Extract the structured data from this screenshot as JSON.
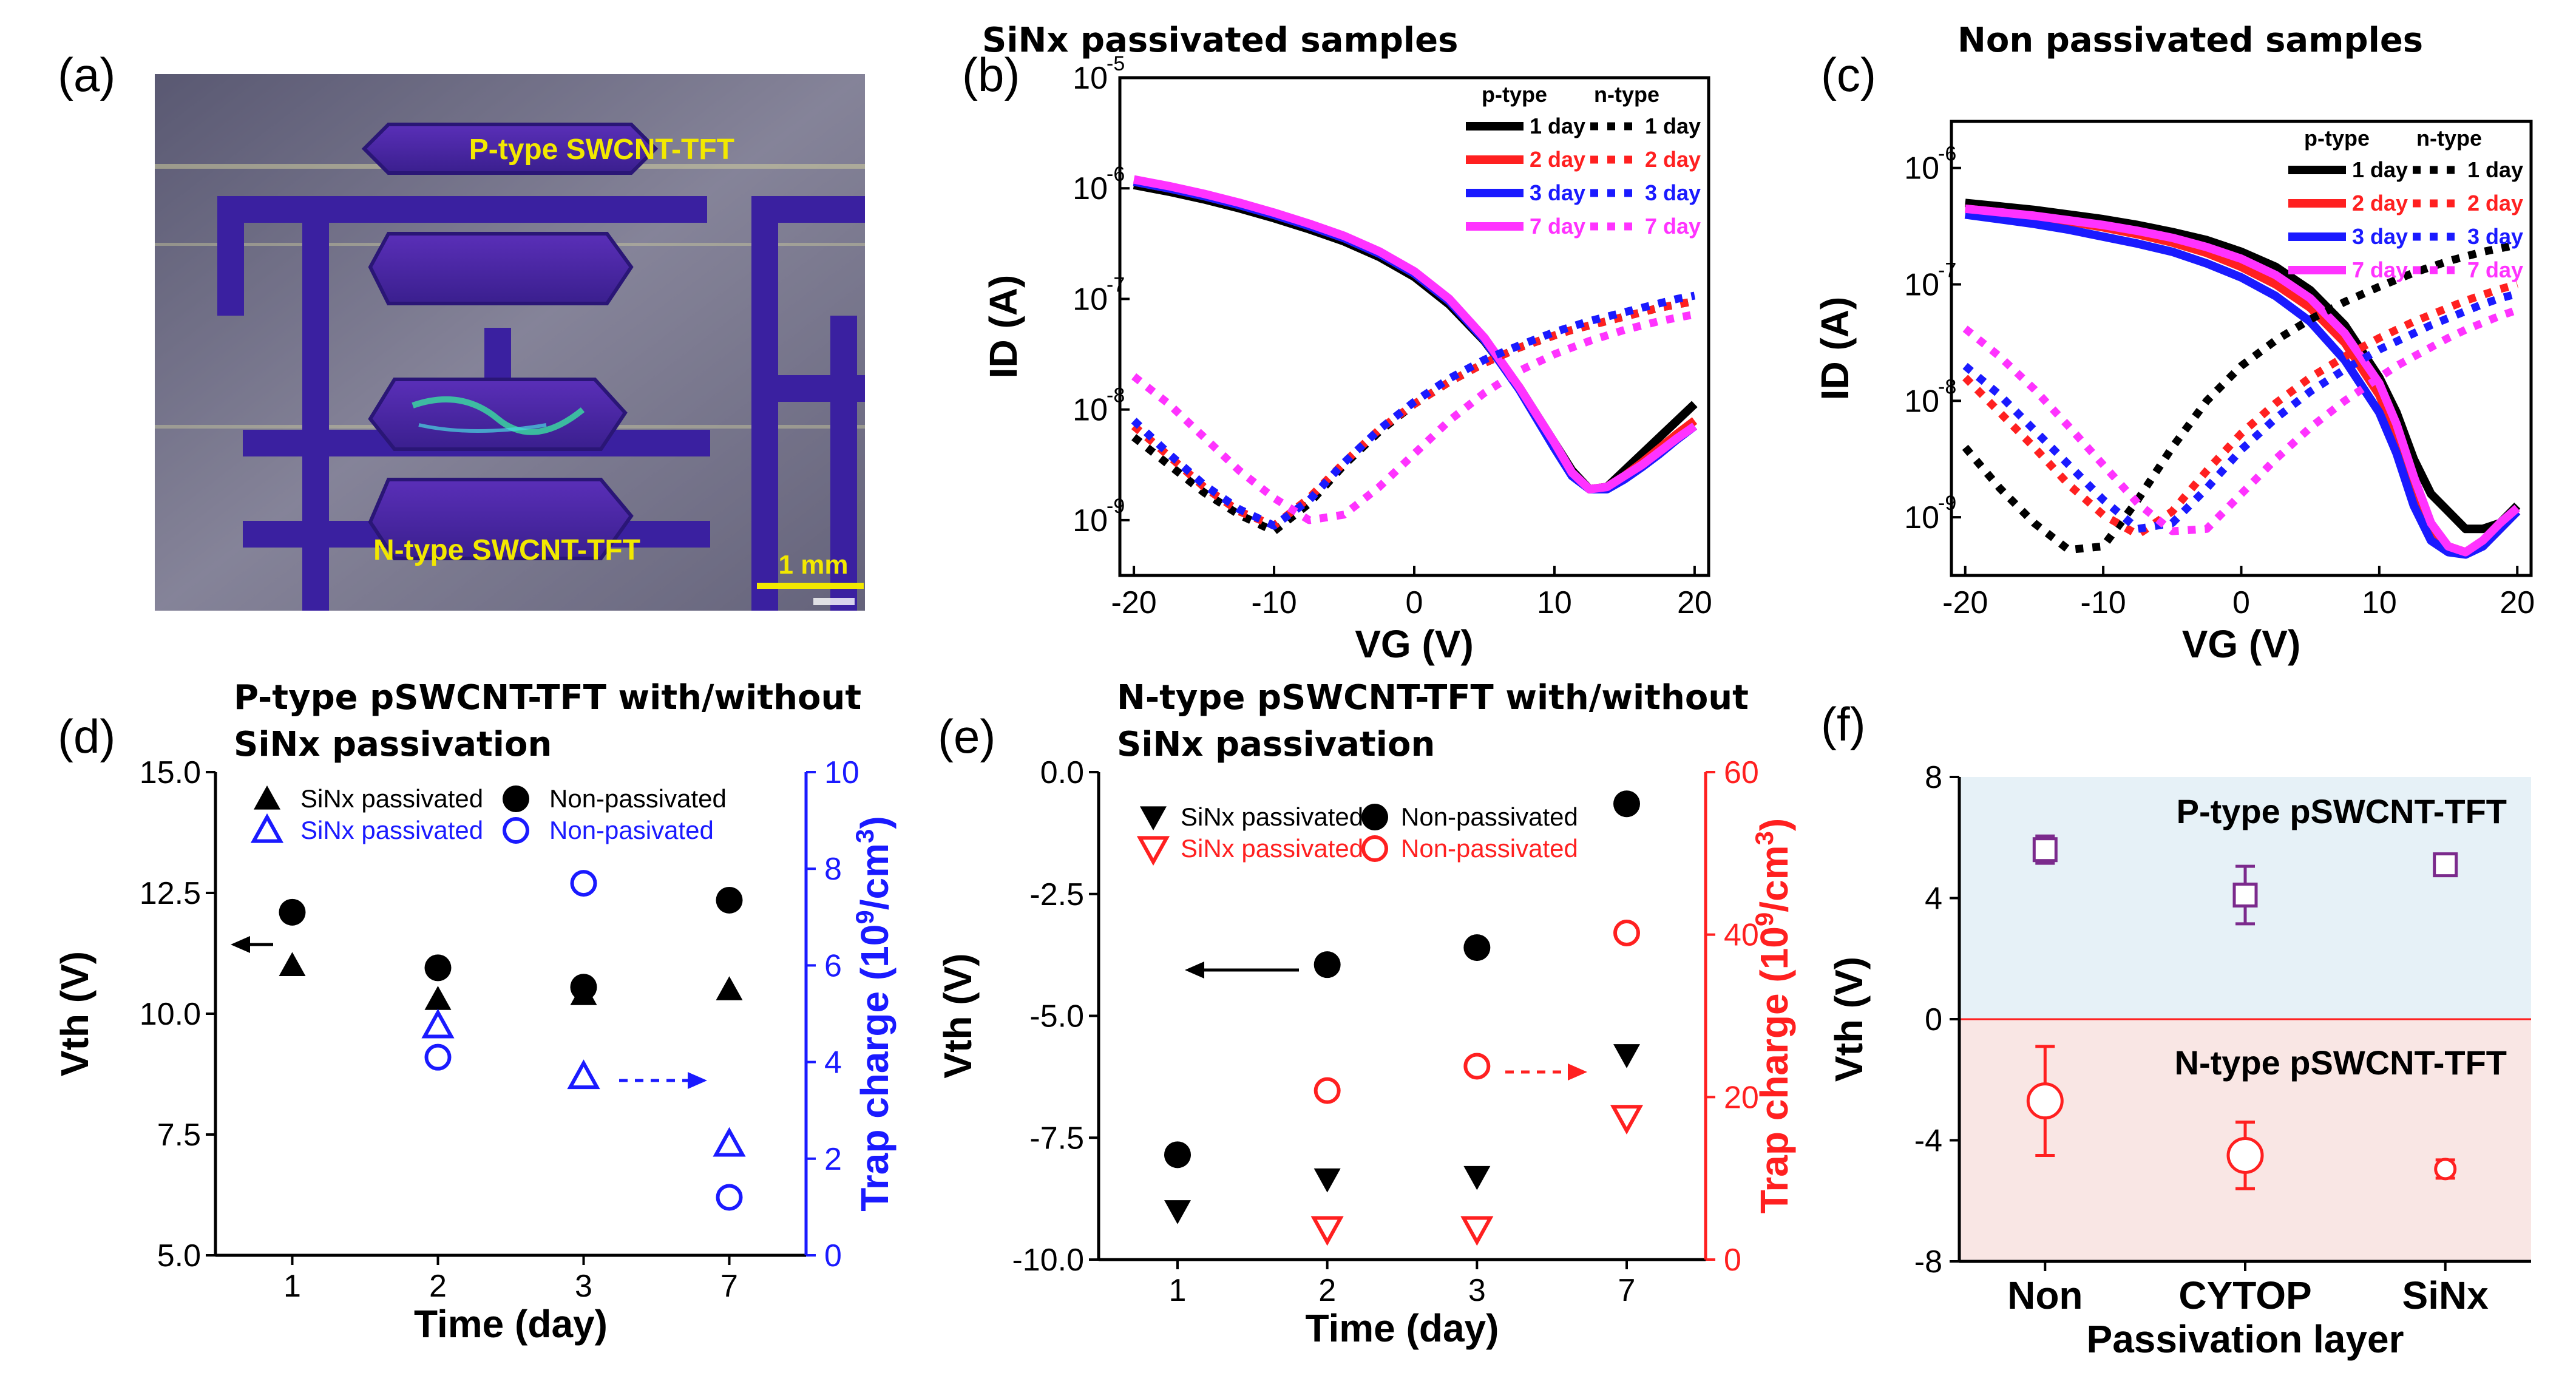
{
  "panels": {
    "a": {
      "label": "(a)",
      "p_type_label": "P-type SWCNT-TFT",
      "n_type_label": "N-type SWCNT-TFT",
      "scale_bar": "1 mm"
    },
    "b": {
      "label": "(b)",
      "title": "SiNx passivated samples"
    },
    "c": {
      "label": "(c)",
      "title": "Non passivated samples"
    },
    "d": {
      "label": "(d)",
      "title_line1": "P-type pSWCNT-TFT with/without",
      "title_line2": "SiNx passivation"
    },
    "e": {
      "label": "(e)",
      "title_line1": "N-type pSWCNT-TFT with/without",
      "title_line2": "SiNx passivation"
    },
    "f": {
      "label": "(f)",
      "p_region_label": "P-type pSWCNT-TFT",
      "n_region_label": "N-type pSWCNT-TFT"
    }
  },
  "colors": {
    "day1": "#000000",
    "day2": "#ff2020",
    "day3": "#1a1aff",
    "day7": "#ff33ff",
    "blue": "#1a1aff",
    "red": "#ff2020",
    "purple": "#7b2a8c",
    "p_region": "#e6f1f7",
    "n_region": "#f9e6e4"
  },
  "chart_data": [
    {
      "id": "b",
      "type": "line",
      "title": "SiNx passivated samples",
      "xlabel": "VG (V)",
      "ylabel": "ID (A)",
      "yscale": "log",
      "xlim": [
        -21,
        21
      ],
      "ylim_exp": [
        -9.5,
        -5
      ],
      "xticks": [
        "-20",
        "-10",
        "0",
        "10",
        "20"
      ],
      "xtick_values": [
        -20,
        -10,
        0,
        10,
        20
      ],
      "yticks": [
        "10",
        "10",
        "10",
        "10",
        "10"
      ],
      "ytick_exps": [
        "-9",
        "-8",
        "-7",
        "-6",
        "-5"
      ],
      "ytick_values": [
        -9,
        -8,
        -7,
        -6,
        -5
      ],
      "legend": {
        "p_header": "p-type",
        "n_header": "n-type",
        "entries": [
          "1 day",
          "2 day",
          "3 day",
          "7 day"
        ]
      },
      "x": [
        -20,
        -17.5,
        -15,
        -12.5,
        -10,
        -7.5,
        -5,
        -2.5,
        0,
        2.5,
        5,
        7.5,
        10,
        11.25,
        12.5,
        13.75,
        15,
        16.25,
        17.5,
        18.75,
        20
      ],
      "series": [
        {
          "name": "p-type 1 day",
          "style": "solid",
          "color_key": "day1",
          "log_values": [
            -5.97,
            -6.03,
            -6.1,
            -6.18,
            -6.27,
            -6.37,
            -6.48,
            -6.62,
            -6.8,
            -7.05,
            -7.38,
            -7.8,
            -8.3,
            -8.55,
            -8.72,
            -8.7,
            -8.55,
            -8.4,
            -8.25,
            -8.1,
            -7.95
          ]
        },
        {
          "name": "p-type 2 day",
          "style": "solid",
          "color_key": "day2",
          "log_values": [
            -5.94,
            -6.0,
            -6.07,
            -6.15,
            -6.24,
            -6.34,
            -6.45,
            -6.59,
            -6.77,
            -7.02,
            -7.36,
            -7.8,
            -8.32,
            -8.58,
            -8.72,
            -8.7,
            -8.6,
            -8.48,
            -8.35,
            -8.22,
            -8.1
          ]
        },
        {
          "name": "p-type 3 day",
          "style": "solid",
          "color_key": "day3",
          "log_values": [
            -5.94,
            -6.0,
            -6.07,
            -6.15,
            -6.24,
            -6.34,
            -6.45,
            -6.59,
            -6.77,
            -7.02,
            -7.37,
            -7.82,
            -8.35,
            -8.6,
            -8.72,
            -8.72,
            -8.63,
            -8.52,
            -8.4,
            -8.27,
            -8.15
          ]
        },
        {
          "name": "p-type 7 day",
          "style": "solid",
          "color_key": "day7",
          "log_values": [
            -5.92,
            -5.98,
            -6.05,
            -6.13,
            -6.22,
            -6.32,
            -6.43,
            -6.57,
            -6.75,
            -7.0,
            -7.35,
            -7.8,
            -8.3,
            -8.57,
            -8.72,
            -8.7,
            -8.6,
            -8.5,
            -8.38,
            -8.26,
            -8.15
          ]
        },
        {
          "name": "n-type 1 day",
          "style": "dotted",
          "color_key": "day1",
          "log_values": [
            -8.25,
            -8.5,
            -8.75,
            -8.95,
            -9.1,
            -8.85,
            -8.5,
            -8.2,
            -7.95,
            -7.75,
            -7.58,
            -7.44,
            -7.33,
            -7.28,
            -7.24,
            -7.2,
            -7.16,
            -7.12,
            -7.08,
            -7.05,
            -7.02
          ]
        },
        {
          "name": "n-type 2 day",
          "style": "dotted",
          "color_key": "day2",
          "log_values": [
            -8.15,
            -8.42,
            -8.7,
            -8.92,
            -9.05,
            -8.8,
            -8.48,
            -8.18,
            -7.95,
            -7.75,
            -7.58,
            -7.44,
            -7.33,
            -7.28,
            -7.24,
            -7.2,
            -7.16,
            -7.12,
            -7.08,
            -7.05,
            -7.02
          ]
        },
        {
          "name": "n-type 3 day",
          "style": "dotted",
          "color_key": "day3",
          "log_values": [
            -8.1,
            -8.4,
            -8.68,
            -8.9,
            -9.05,
            -8.82,
            -8.48,
            -8.18,
            -7.93,
            -7.72,
            -7.55,
            -7.42,
            -7.3,
            -7.25,
            -7.2,
            -7.16,
            -7.12,
            -7.08,
            -7.04,
            -7.0,
            -6.97
          ]
        },
        {
          "name": "n-type 7 day",
          "style": "dotted",
          "color_key": "day7",
          "log_values": [
            -7.7,
            -7.95,
            -8.25,
            -8.55,
            -8.8,
            -9.0,
            -8.95,
            -8.7,
            -8.4,
            -8.1,
            -7.85,
            -7.65,
            -7.5,
            -7.44,
            -7.38,
            -7.33,
            -7.28,
            -7.24,
            -7.2,
            -7.17,
            -7.14
          ]
        }
      ]
    },
    {
      "id": "c",
      "type": "line",
      "title": "Non passivated samples",
      "xlabel": "VG (V)",
      "ylabel": "ID (A)",
      "yscale": "log",
      "xlim": [
        -21,
        21
      ],
      "ylim_exp": [
        -9.5,
        -5.6
      ],
      "xticks": [
        "-20",
        "-10",
        "0",
        "10",
        "20"
      ],
      "xtick_values": [
        -20,
        -10,
        0,
        10,
        20
      ],
      "yticks": [
        "10",
        "10",
        "10",
        "10"
      ],
      "ytick_exps": [
        "-9",
        "-8",
        "-7",
        "-6"
      ],
      "ytick_values": [
        -9,
        -8,
        -7,
        -6
      ],
      "legend": {
        "p_header": "p-type",
        "n_header": "n-type",
        "entries": [
          "1 day",
          "2 day",
          "3 day",
          "7 day"
        ]
      },
      "x": [
        -20,
        -17.5,
        -15,
        -12.5,
        -10,
        -7.5,
        -5,
        -2.5,
        0,
        2.5,
        5,
        7.5,
        10,
        11.25,
        12.5,
        13.75,
        15,
        16.25,
        17.5,
        18.75,
        20
      ],
      "series": [
        {
          "name": "p-type 1 day",
          "style": "solid",
          "color_key": "day1",
          "log_values": [
            -6.3,
            -6.33,
            -6.36,
            -6.4,
            -6.44,
            -6.49,
            -6.55,
            -6.62,
            -6.72,
            -6.85,
            -7.05,
            -7.35,
            -7.8,
            -8.1,
            -8.5,
            -8.8,
            -8.95,
            -9.1,
            -9.1,
            -9.05,
            -8.9
          ]
        },
        {
          "name": "p-type 2 day",
          "style": "solid",
          "color_key": "day2",
          "log_values": [
            -6.35,
            -6.38,
            -6.42,
            -6.46,
            -6.51,
            -6.57,
            -6.64,
            -6.73,
            -6.85,
            -7.0,
            -7.2,
            -7.5,
            -7.95,
            -8.3,
            -8.75,
            -9.1,
            -9.25,
            -9.3,
            -9.25,
            -9.1,
            -8.95
          ]
        },
        {
          "name": "p-type 3 day",
          "style": "solid",
          "color_key": "day3",
          "log_values": [
            -6.4,
            -6.44,
            -6.48,
            -6.53,
            -6.59,
            -6.65,
            -6.72,
            -6.82,
            -6.94,
            -7.1,
            -7.32,
            -7.65,
            -8.1,
            -8.45,
            -8.9,
            -9.2,
            -9.3,
            -9.32,
            -9.25,
            -9.1,
            -8.95
          ]
        },
        {
          "name": "p-type 7 day",
          "style": "solid",
          "color_key": "day7",
          "log_values": [
            -6.35,
            -6.38,
            -6.41,
            -6.45,
            -6.49,
            -6.54,
            -6.6,
            -6.68,
            -6.78,
            -6.92,
            -7.12,
            -7.42,
            -7.85,
            -8.2,
            -8.65,
            -9.05,
            -9.25,
            -9.3,
            -9.2,
            -9.05,
            -8.92
          ]
        },
        {
          "name": "n-type 1 day",
          "style": "dotted",
          "color_key": "day1",
          "log_values": [
            -8.4,
            -8.75,
            -9.05,
            -9.28,
            -9.25,
            -8.85,
            -8.4,
            -8.0,
            -7.7,
            -7.48,
            -7.3,
            -7.15,
            -7.02,
            -6.96,
            -6.9,
            -6.85,
            -6.8,
            -6.76,
            -6.72,
            -6.69,
            -6.66
          ]
        },
        {
          "name": "n-type 2 day",
          "style": "dotted",
          "color_key": "day2",
          "log_values": [
            -7.8,
            -8.1,
            -8.4,
            -8.72,
            -8.98,
            -9.15,
            -8.95,
            -8.6,
            -8.28,
            -8.02,
            -7.8,
            -7.62,
            -7.46,
            -7.39,
            -7.32,
            -7.26,
            -7.2,
            -7.14,
            -7.09,
            -7.04,
            -7.0
          ]
        },
        {
          "name": "n-type 3 day",
          "style": "dotted",
          "color_key": "day3",
          "log_values": [
            -7.7,
            -7.95,
            -8.25,
            -8.55,
            -8.85,
            -9.1,
            -9.05,
            -8.75,
            -8.42,
            -8.15,
            -7.92,
            -7.73,
            -7.56,
            -7.49,
            -7.42,
            -7.35,
            -7.29,
            -7.23,
            -7.17,
            -7.12,
            -7.08
          ]
        },
        {
          "name": "n-type 7 day",
          "style": "dotted",
          "color_key": "day7",
          "log_values": [
            -7.38,
            -7.62,
            -7.9,
            -8.22,
            -8.55,
            -8.88,
            -9.12,
            -9.1,
            -8.8,
            -8.5,
            -8.23,
            -8.0,
            -7.8,
            -7.7,
            -7.62,
            -7.54,
            -7.46,
            -7.39,
            -7.33,
            -7.27,
            -7.22
          ]
        }
      ]
    },
    {
      "id": "d",
      "type": "scatter",
      "title": "P-type pSWCNT-TFT with/without SiNx passivation",
      "categories": [
        "1",
        "2",
        "3",
        "7"
      ],
      "xlabel": "Time (day)",
      "ylabel_left": "Vth (V)",
      "ylabel_right": "Trap charge (10⁹/cm³)",
      "ylabel_right_base": "Trap charge (10",
      "ylabel_right_exp": "9",
      "ylabel_right_tail": "/cm",
      "ylabel_right_exp2": "3",
      "ylabel_right_close": ")",
      "ylim_left": [
        5,
        15
      ],
      "ylim_right": [
        0,
        10
      ],
      "yticks_left": [
        "5.0",
        "7.5",
        "10.0",
        "12.5",
        "15.0"
      ],
      "ytick_left_values": [
        5,
        7.5,
        10,
        12.5,
        15
      ],
      "yticks_right": [
        "0",
        "2",
        "4",
        "6",
        "8",
        "10"
      ],
      "ytick_right_values": [
        0,
        2,
        4,
        6,
        8,
        10
      ],
      "legend": [
        "SiNx passivated",
        "Non-passivated",
        "SiNx passivated",
        "Non-pasivated"
      ],
      "series": [
        {
          "name": "SiNx passivated",
          "axis": "left",
          "marker": "filled-triangle-up",
          "color_key": "day1",
          "values": [
            11.0,
            10.3,
            10.4,
            10.5
          ]
        },
        {
          "name": "Non-passivated",
          "axis": "left",
          "marker": "filled-circle",
          "color_key": "day1",
          "values": [
            12.1,
            10.95,
            10.55,
            12.35
          ]
        },
        {
          "name": "SiNx passivated",
          "axis": "right",
          "marker": "open-triangle-up",
          "color_key": "blue",
          "values": [
            null,
            4.75,
            3.7,
            2.3
          ]
        },
        {
          "name": "Non-pasivated",
          "axis": "right",
          "marker": "open-circle",
          "color_key": "blue",
          "values": [
            null,
            4.1,
            7.7,
            1.2
          ]
        }
      ]
    },
    {
      "id": "e",
      "type": "scatter",
      "title": "N-type pSWCNT-TFT with/without SiNx passivation",
      "categories": [
        "1",
        "2",
        "3",
        "7"
      ],
      "xlabel": "Time (day)",
      "ylabel_left": "Vth (V)",
      "ylabel_right": "Trap charge (10⁹/cm³)",
      "ylabel_right_base": "Trap charge (10",
      "ylabel_right_exp": "9",
      "ylabel_right_tail": "/cm",
      "ylabel_right_exp2": "3",
      "ylabel_right_close": ")",
      "ylim_left": [
        -10,
        0
      ],
      "ylim_right": [
        0,
        60
      ],
      "yticks_left": [
        "-10.0",
        "-7.5",
        "-5.0",
        "-2.5",
        "0.0"
      ],
      "ytick_left_values": [
        -10,
        -7.5,
        -5,
        -2.5,
        0
      ],
      "yticks_right": [
        "0",
        "20",
        "40",
        "60"
      ],
      "ytick_right_values": [
        0,
        20,
        40,
        60
      ],
      "legend": [
        "SiNx passivated",
        "Non-passivated",
        "SiNx passivated",
        "Non-passivated"
      ],
      "series": [
        {
          "name": "SiNx passivated",
          "axis": "left",
          "marker": "filled-triangle-down",
          "color_key": "day1",
          "values": [
            -9.0,
            -8.35,
            -8.3,
            -5.8
          ]
        },
        {
          "name": "Non-passivated",
          "axis": "left",
          "marker": "filled-circle",
          "color_key": "day1",
          "values": [
            -7.85,
            -3.95,
            -3.6,
            -0.65
          ]
        },
        {
          "name": "SiNx passivated",
          "axis": "right",
          "marker": "open-triangle-down",
          "color_key": "red",
          "values": [
            null,
            3.8,
            3.8,
            17.5
          ]
        },
        {
          "name": "Non-passivated",
          "axis": "right",
          "marker": "open-circle",
          "color_key": "red",
          "values": [
            null,
            20.8,
            23.8,
            40.2
          ]
        }
      ]
    },
    {
      "id": "f",
      "type": "scatter",
      "title": "",
      "categories": [
        "Non",
        "CYTOP",
        "SiNx"
      ],
      "xlabel": "Passivation layer",
      "ylabel": "Vth (V)",
      "ylim": [
        -8,
        8
      ],
      "yticks": [
        "-8",
        "-4",
        "0",
        "4",
        "8"
      ],
      "ytick_values": [
        -8,
        -4,
        0,
        4,
        8
      ],
      "series": [
        {
          "name": "P-type pSWCNT-TFT",
          "marker": "open-square",
          "color_key": "purple",
          "values": [
            5.6,
            4.1,
            5.1
          ],
          "err": [
            0.45,
            0.95,
            0.3
          ]
        },
        {
          "name": "N-type pSWCNT-TFT",
          "marker": "open-circle",
          "color_key": "red",
          "values": [
            -2.7,
            -4.5,
            -4.95
          ],
          "err": [
            1.8,
            1.1,
            0.3
          ]
        }
      ]
    }
  ]
}
